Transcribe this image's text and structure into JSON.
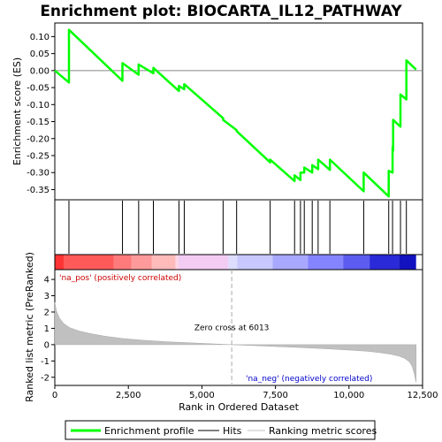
{
  "chart_data": {
    "type": "line",
    "title": "Enrichment plot: BIOCARTA_IL12_PATHWAY",
    "x_range": [
      0,
      12500
    ],
    "x_ticks": [
      0,
      2500,
      5000,
      7500,
      10000,
      12500
    ],
    "x_tick_labels": [
      "0",
      "2,500",
      "5,000",
      "7,500",
      "10,000",
      "12,500"
    ],
    "xlabel": "Rank in Ordered Dataset",
    "n_genes": 12280,
    "es_panel": {
      "ylabel": "Enrichment score (ES)",
      "ylim": [
        -0.38,
        0.14
      ],
      "y_ticks": [
        0.1,
        0.05,
        0.0,
        -0.05,
        -0.1,
        -0.15,
        -0.2,
        -0.25,
        -0.3,
        -0.35
      ],
      "y_tick_labels": [
        "0.10",
        "0.05",
        "0.00",
        "-0.05",
        "-0.10",
        "-0.15",
        "-0.20",
        "-0.25",
        "-0.30",
        "-0.35"
      ],
      "series": [
        {
          "name": "Enrichment profile",
          "x": [
            0,
            480,
            480,
            2300,
            2300,
            2850,
            2850,
            3350,
            3350,
            4220,
            4220,
            4400,
            4400,
            5720,
            5720,
            6180,
            6180,
            7320,
            7320,
            8150,
            8150,
            8350,
            8350,
            8480,
            8480,
            8750,
            8750,
            8950,
            8950,
            9350,
            9350,
            10500,
            10500,
            11350,
            11350,
            11480,
            11480,
            11500,
            11500,
            11750,
            11750,
            11950,
            11950,
            12280
          ],
          "y": [
            0.0,
            -0.035,
            0.12,
            -0.03,
            0.022,
            -0.012,
            0.018,
            -0.008,
            0.008,
            -0.06,
            -0.045,
            -0.055,
            -0.04,
            -0.14,
            -0.145,
            -0.175,
            -0.178,
            -0.27,
            -0.262,
            -0.325,
            -0.308,
            -0.322,
            -0.3,
            -0.3,
            -0.285,
            -0.3,
            -0.278,
            -0.29,
            -0.262,
            -0.292,
            -0.262,
            -0.355,
            -0.3,
            -0.37,
            -0.295,
            -0.3,
            -0.225,
            -0.235,
            -0.145,
            -0.165,
            -0.07,
            -0.085,
            0.03,
            0.003
          ]
        }
      ]
    },
    "hits": {
      "name": "Hits",
      "positions": [
        480,
        2300,
        2850,
        3350,
        4220,
        4400,
        5720,
        6180,
        7320,
        8150,
        8350,
        8480,
        8750,
        8950,
        9350,
        10500,
        11350,
        11480,
        11750,
        11950
      ]
    },
    "heat_strip": {
      "colors": [
        "#ff3333",
        "#ff5a5a",
        "#ff7a7a",
        "#ff9a9a",
        "#ffbaba",
        "#ffd6e6",
        "#f3ccf3",
        "#ddddff",
        "#c8c8ff",
        "#a8a8ff",
        "#8484ff",
        "#5c5cf0",
        "#2a2ad8",
        "#1212c0"
      ],
      "boundaries": [
        0,
        300,
        2000,
        2600,
        3300,
        4100,
        4200,
        5900,
        6200,
        7400,
        8600,
        9800,
        10700,
        11700,
        12280
      ]
    },
    "metric_panel": {
      "name": "Ranking metric scores",
      "ylabel": "Ranked list metric (PreRanked)",
      "ylim": [
        -2.5,
        4.6
      ],
      "y_ticks": [
        4,
        3,
        2,
        1,
        0,
        -1,
        -2
      ],
      "y_tick_labels": [
        "4",
        "3",
        "2",
        "1",
        "0",
        "-1",
        "-2"
      ],
      "curve_x": [
        0,
        50,
        150,
        300,
        500,
        800,
        1200,
        1700,
        2300,
        3000,
        3800,
        4600,
        5400,
        6013,
        6800,
        7600,
        8400,
        9200,
        10000,
        10600,
        11000,
        11400,
        11700,
        11900,
        12050,
        12150,
        12220,
        12280
      ],
      "curve_y": [
        2.6,
        2.1,
        1.65,
        1.3,
        1.05,
        0.85,
        0.68,
        0.52,
        0.38,
        0.27,
        0.18,
        0.11,
        0.05,
        0.0,
        -0.06,
        -0.12,
        -0.18,
        -0.25,
        -0.33,
        -0.4,
        -0.48,
        -0.58,
        -0.7,
        -0.85,
        -1.05,
        -1.35,
        -1.8,
        -2.3
      ],
      "zero_cross": 6013,
      "zero_cross_label": "Zero cross at 6013",
      "pos_label": "'na_pos' (positively correlated)",
      "neg_label": "'na_neg' (negatively correlated)"
    },
    "legend": [
      {
        "name": "Enrichment profile",
        "color": "#00ff00"
      },
      {
        "name": "Hits",
        "color": "#000000"
      },
      {
        "name": "Ranking metric scores",
        "color": "#c0c0c0"
      }
    ],
    "colors": {
      "profile": "#00ff00",
      "hits": "#000000",
      "metric_fill": "#c0c0c0",
      "pos_text": "#cc0000",
      "neg_text": "#0000cc"
    }
  }
}
